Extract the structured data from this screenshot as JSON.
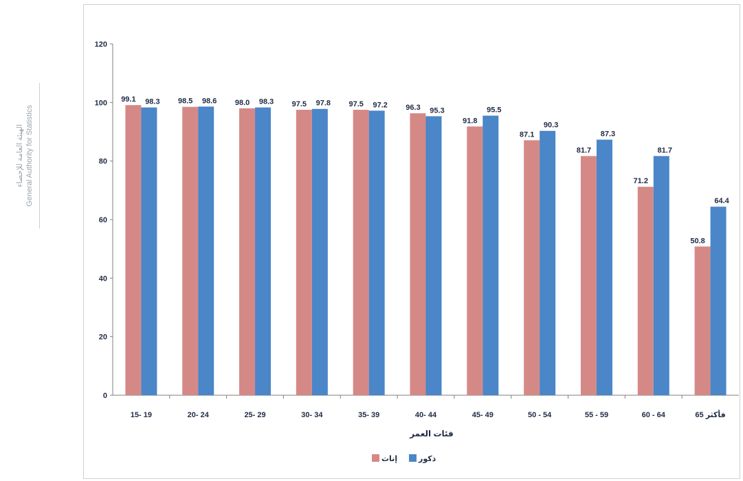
{
  "watermark": {
    "line1": "الهيئة العامة للإحصاء",
    "line2": "General Authority for Statistics"
  },
  "chart_data": {
    "type": "bar",
    "categories": [
      "15- 19",
      "20- 24",
      "25- 29",
      "30- 34",
      "35- 39",
      "40- 44",
      "45- 49",
      "50 - 54",
      "55 - 59",
      "60 - 64",
      "65 فأكثر"
    ],
    "series": [
      {
        "name": "إناث",
        "color": "#d58987",
        "values": [
          99.1,
          98.5,
          98.0,
          97.5,
          97.5,
          96.3,
          91.8,
          87.1,
          81.7,
          71.2,
          50.8
        ]
      },
      {
        "name": "ذكور",
        "color": "#4a86c8",
        "values": [
          98.3,
          98.6,
          98.3,
          97.8,
          97.2,
          95.3,
          95.5,
          90.3,
          87.3,
          81.7,
          64.4
        ]
      }
    ],
    "xlabel": "فئات العمر",
    "ylabel": "",
    "ylim": [
      0,
      120
    ],
    "yticks": [
      0,
      20,
      40,
      60,
      80,
      100,
      120
    ],
    "grid": false,
    "legend_position": "bottom"
  }
}
